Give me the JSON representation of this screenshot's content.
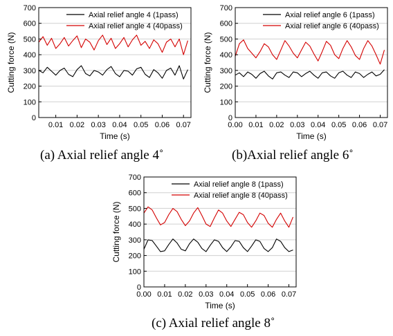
{
  "figure": {
    "captions": [
      "(a) Axial relief angle 4˚",
      "(b)Axial relief angle 6˚",
      "(c) Axial relief angle 8˚"
    ]
  },
  "chart_data": [
    {
      "type": "line",
      "caption": "(a) Axial relief angle 4˚",
      "xlabel": "Time (s)",
      "ylabel": "Cutting force (N)",
      "xlim": [
        0.002,
        0.0735
      ],
      "ylim": [
        0,
        700
      ],
      "xticks": [
        "0.01",
        "0.02",
        "0.03",
        "0.04",
        "0.05",
        "0.06",
        "0.07"
      ],
      "yticks": [
        "0",
        "100",
        "200",
        "300",
        "400",
        "500",
        "600",
        "700"
      ],
      "grid": "horizontal",
      "legend_position": "top-right",
      "series": [
        {
          "name": "Axial relief angle 4 (1pass)",
          "color": "#000000",
          "x": [
            0.002,
            0.004,
            0.006,
            0.008,
            0.01,
            0.012,
            0.014,
            0.016,
            0.018,
            0.02,
            0.022,
            0.024,
            0.026,
            0.028,
            0.03,
            0.032,
            0.034,
            0.036,
            0.038,
            0.04,
            0.042,
            0.044,
            0.046,
            0.048,
            0.05,
            0.052,
            0.054,
            0.056,
            0.058,
            0.06,
            0.062,
            0.064,
            0.066,
            0.068,
            0.07,
            0.072
          ],
          "y": [
            300,
            285,
            320,
            295,
            270,
            300,
            315,
            275,
            260,
            305,
            330,
            280,
            265,
            300,
            290,
            270,
            305,
            325,
            280,
            260,
            300,
            295,
            270,
            310,
            320,
            275,
            255,
            305,
            285,
            250,
            300,
            315,
            270,
            330,
            245,
            305
          ]
        },
        {
          "name": "Axial relief angle 4 (40pass)",
          "color": "#d40000",
          "x": [
            0.002,
            0.004,
            0.006,
            0.008,
            0.01,
            0.012,
            0.014,
            0.016,
            0.018,
            0.02,
            0.022,
            0.024,
            0.026,
            0.028,
            0.03,
            0.032,
            0.034,
            0.036,
            0.038,
            0.04,
            0.042,
            0.044,
            0.046,
            0.048,
            0.05,
            0.052,
            0.054,
            0.056,
            0.058,
            0.06,
            0.062,
            0.064,
            0.066,
            0.068,
            0.07,
            0.072
          ],
          "y": [
            480,
            515,
            460,
            505,
            440,
            470,
            510,
            455,
            490,
            520,
            445,
            500,
            480,
            430,
            490,
            525,
            465,
            505,
            440,
            470,
            510,
            450,
            495,
            525,
            460,
            485,
            440,
            495,
            470,
            415,
            480,
            500,
            450,
            500,
            400,
            490
          ]
        }
      ]
    },
    {
      "type": "line",
      "caption": "(b)Axial relief angle 6˚",
      "xlabel": "Time (s)",
      "ylabel": "Cutting force (N)",
      "xlim": [
        0,
        0.0735
      ],
      "ylim": [
        0,
        700
      ],
      "xticks": [
        "0.00",
        "0.01",
        "0.02",
        "0.03",
        "0.04",
        "0.05",
        "0.06",
        "0.07"
      ],
      "yticks": [
        "0",
        "100",
        "200",
        "300",
        "400",
        "500",
        "600",
        "700"
      ],
      "grid": "horizontal",
      "legend_position": "top-right",
      "series": [
        {
          "name": "Axial relief angle 6 (1pass)",
          "color": "#000000",
          "x": [
            0.0,
            0.002,
            0.004,
            0.006,
            0.008,
            0.01,
            0.012,
            0.014,
            0.016,
            0.018,
            0.02,
            0.022,
            0.024,
            0.026,
            0.028,
            0.03,
            0.032,
            0.034,
            0.036,
            0.038,
            0.04,
            0.042,
            0.044,
            0.046,
            0.048,
            0.05,
            0.052,
            0.054,
            0.056,
            0.058,
            0.06,
            0.062,
            0.064,
            0.066,
            0.068,
            0.07,
            0.072
          ],
          "y": [
            270,
            285,
            260,
            290,
            275,
            250,
            280,
            295,
            265,
            245,
            285,
            290,
            270,
            255,
            290,
            285,
            260,
            280,
            295,
            270,
            250,
            285,
            290,
            265,
            250,
            285,
            295,
            270,
            255,
            290,
            280,
            255,
            275,
            290,
            265,
            275,
            305
          ]
        },
        {
          "name": "Axial relief angle 6 (40pass)",
          "color": "#d40000",
          "x": [
            0.0,
            0.002,
            0.004,
            0.006,
            0.008,
            0.01,
            0.012,
            0.014,
            0.016,
            0.018,
            0.02,
            0.022,
            0.024,
            0.026,
            0.028,
            0.03,
            0.032,
            0.034,
            0.036,
            0.038,
            0.04,
            0.042,
            0.044,
            0.046,
            0.048,
            0.05,
            0.052,
            0.054,
            0.056,
            0.058,
            0.06,
            0.062,
            0.064,
            0.066,
            0.068,
            0.07,
            0.072
          ],
          "y": [
            390,
            470,
            495,
            440,
            410,
            380,
            420,
            470,
            450,
            400,
            370,
            430,
            490,
            455,
            410,
            380,
            430,
            480,
            455,
            405,
            360,
            420,
            485,
            460,
            400,
            375,
            440,
            490,
            450,
            395,
            370,
            440,
            490,
            455,
            400,
            340,
            430
          ]
        }
      ]
    },
    {
      "type": "line",
      "caption": "(c) Axial relief angle 8˚",
      "xlabel": "Time (s)",
      "ylabel": "Cutting force (N)",
      "xlim": [
        0,
        0.0735
      ],
      "ylim": [
        0,
        700
      ],
      "xticks": [
        "0.00",
        "0.01",
        "0.02",
        "0.03",
        "0.04",
        "0.05",
        "0.06",
        "0.07"
      ],
      "yticks": [
        "0",
        "100",
        "200",
        "300",
        "400",
        "500",
        "600",
        "700"
      ],
      "grid": "horizontal",
      "legend_position": "top-right",
      "series": [
        {
          "name": "Axial relief angle 8 (1pass)",
          "color": "#000000",
          "x": [
            0.0,
            0.002,
            0.004,
            0.006,
            0.008,
            0.01,
            0.012,
            0.014,
            0.016,
            0.018,
            0.02,
            0.022,
            0.024,
            0.026,
            0.028,
            0.03,
            0.032,
            0.034,
            0.036,
            0.038,
            0.04,
            0.042,
            0.044,
            0.046,
            0.048,
            0.05,
            0.052,
            0.054,
            0.056,
            0.058,
            0.06,
            0.062,
            0.064,
            0.066,
            0.068,
            0.07,
            0.072
          ],
          "y": [
            240,
            300,
            295,
            260,
            225,
            230,
            270,
            305,
            280,
            240,
            230,
            275,
            305,
            285,
            245,
            225,
            265,
            300,
            290,
            250,
            225,
            255,
            295,
            290,
            250,
            225,
            260,
            300,
            290,
            245,
            225,
            250,
            305,
            290,
            250,
            225,
            235
          ]
        },
        {
          "name": "Axial relief angle 8 (40pass)",
          "color": "#d40000",
          "x": [
            0.0,
            0.002,
            0.004,
            0.006,
            0.008,
            0.01,
            0.012,
            0.014,
            0.016,
            0.018,
            0.02,
            0.022,
            0.024,
            0.026,
            0.028,
            0.03,
            0.032,
            0.034,
            0.036,
            0.038,
            0.04,
            0.042,
            0.044,
            0.046,
            0.048,
            0.05,
            0.052,
            0.054,
            0.056,
            0.058,
            0.06,
            0.062,
            0.064,
            0.066,
            0.068,
            0.07,
            0.072
          ],
          "y": [
            470,
            510,
            490,
            440,
            395,
            410,
            460,
            500,
            480,
            430,
            390,
            420,
            470,
            505,
            455,
            400,
            385,
            440,
            490,
            470,
            420,
            385,
            430,
            475,
            460,
            410,
            380,
            420,
            470,
            455,
            405,
            380,
            430,
            470,
            420,
            380,
            445
          ]
        }
      ]
    }
  ]
}
